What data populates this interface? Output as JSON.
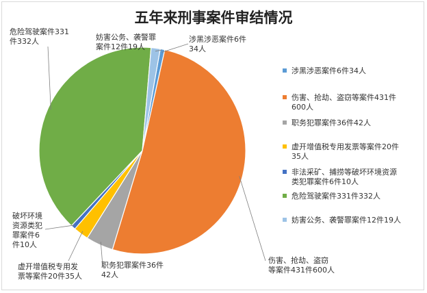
{
  "chart_data": {
    "type": "pie",
    "title": "五年来刑事案件审结情况",
    "legend_position": "right",
    "slices": [
      {
        "label": "涉黑涉恶案件6件34人",
        "callout_lines": [
          "涉黑涉恶案件6件",
          "34人"
        ],
        "legend_lines": [
          "涉黑涉恶案件6件34人"
        ],
        "value": 6,
        "color": "#5b9bd5"
      },
      {
        "label": "伤害、抢劫、盗窃等案件431件600人",
        "callout_lines": [
          "伤害、抢劫、盗窃",
          "等案件431件600人"
        ],
        "legend_lines": [
          "伤害、抢劫、盗窃等案件431件",
          "600人"
        ],
        "value": 431,
        "color": "#ed7d31"
      },
      {
        "label": "职务犯罪案件36件42人",
        "callout_lines": [
          "职务犯罪案件36件",
          "42人"
        ],
        "legend_lines": [
          "职务犯罪案件36件42人"
        ],
        "value": 36,
        "color": "#a5a5a5"
      },
      {
        "label": "虚开增值税专用发票等案件20件35人",
        "callout_lines": [
          "虚开增值税专用发",
          "票等案件20件35人"
        ],
        "legend_lines": [
          "虚开增值税专用发票等案件20件",
          "35人"
        ],
        "value": 20,
        "color": "#ffc000"
      },
      {
        "label": "非法采矿、捕捞等破坏环境资源类犯罪案件6件10人",
        "callout_lines": [
          "破坏环境",
          "资源类犯",
          "罪案件6",
          "件10人"
        ],
        "legend_lines": [
          "非法采矿、捕捞等破坏环境资源",
          "类犯罪案件6件10人"
        ],
        "value": 6,
        "color": "#4472c4"
      },
      {
        "label": "危险驾驶案件331件332人",
        "callout_lines": [
          "危险驾驶案件331",
          "件332人"
        ],
        "legend_lines": [
          "危险驾驶案件331件332人"
        ],
        "value": 331,
        "color": "#70ad47"
      },
      {
        "label": "妨害公务、袭警罪案件12件19人",
        "callout_lines": [
          "妨害公务、袭警罪",
          "案件12件19人"
        ],
        "legend_lines": [
          "妨害公务、袭警罪案件12件19人"
        ],
        "value": 12,
        "color": "#9dc3e6"
      }
    ]
  }
}
